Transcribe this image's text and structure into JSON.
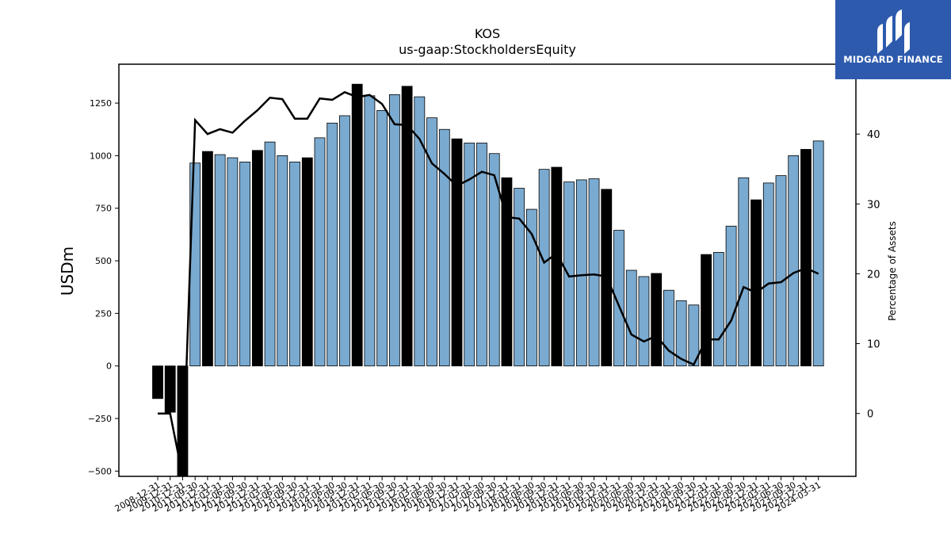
{
  "logo": {
    "name": "MIDGARD FINANCE"
  },
  "colors": {
    "bar_normal": "#7aaad0",
    "bar_highlight": "#000000",
    "line": "#000000"
  },
  "chart_data": {
    "type": "bar",
    "title": "KOS",
    "subtitle": "us-gaap:StockholdersEquity",
    "ylabel": "USDm",
    "y2label": "Percentage of Assets",
    "ylim": [
      -525,
      1435
    ],
    "y2lim": [
      -9,
      50
    ],
    "yticks": [
      -500,
      -250,
      0,
      250,
      500,
      750,
      1000,
      1250
    ],
    "y2ticks": [
      0,
      10,
      20,
      30,
      40
    ],
    "xtick_labels": [
      "2008-12-31",
      "2009-12-31",
      "2010-12-31",
      "2011-09-30",
      "2011-12-31",
      "2012-03-31",
      "2012-06-30",
      "2012-09-30",
      "2012-12-31",
      "2013-03-31",
      "2013-06-30",
      "2013-09-30",
      "2013-12-31",
      "2014-03-31",
      "2014-06-30",
      "2014-09-30",
      "2014-12-31",
      "2015-03-31",
      "2015-06-30",
      "2015-09-30",
      "2015-12-31",
      "2016-03-31",
      "2016-06-30",
      "2016-09-30",
      "2016-12-31",
      "2017-03-31",
      "2017-06-30",
      "2017-09-30",
      "2017-12-31",
      "2018-03-31",
      "2018-06-30",
      "2018-09-30",
      "2018-12-31",
      "2019-03-31",
      "2019-06-30",
      "2019-09-30",
      "2019-12-31",
      "2020-03-31",
      "2020-06-30",
      "2020-09-30",
      "2020-12-31",
      "2021-03-31",
      "2021-06-30",
      "2021-09-30",
      "2021-12-31",
      "2022-03-31",
      "2022-06-30",
      "2022-09-30",
      "2022-12-31",
      "2023-03-31",
      "2023-06-30",
      "2023-09-30",
      "2023-12-31",
      "2024-03-31"
    ],
    "values": [
      -155,
      -220,
      -590,
      965,
      1020,
      1005,
      990,
      970,
      1025,
      1065,
      1000,
      970,
      990,
      1085,
      1155,
      1190,
      1340,
      1285,
      1215,
      1290,
      1330,
      1280,
      1180,
      1125,
      1080,
      1060,
      1060,
      1010,
      895,
      845,
      745,
      935,
      945,
      875,
      885,
      890,
      840,
      645,
      455,
      425,
      440,
      360,
      310,
      290,
      530,
      540,
      665,
      895,
      790,
      870,
      905,
      1000,
      1030,
      1070
    ],
    "highlight": [
      true,
      true,
      true,
      false,
      true,
      false,
      false,
      false,
      true,
      false,
      false,
      false,
      true,
      false,
      false,
      false,
      true,
      false,
      false,
      false,
      true,
      false,
      false,
      false,
      true,
      false,
      false,
      false,
      true,
      false,
      false,
      false,
      true,
      false,
      false,
      false,
      true,
      false,
      false,
      false,
      true,
      false,
      false,
      false,
      true,
      false,
      false,
      false,
      true,
      false,
      false,
      false,
      true,
      false
    ],
    "pct_of_assets": [
      0,
      0,
      -18,
      42,
      40,
      40.7,
      40.2,
      41.9,
      43.4,
      45.2,
      45,
      42.2,
      42.2,
      45.1,
      44.9,
      46,
      45.3,
      45.6,
      44.3,
      41.4,
      41.3,
      39.3,
      35.8,
      34.3,
      32.6,
      33.5,
      34.6,
      34.1,
      28.1,
      27.9,
      25.7,
      21.6,
      22.9,
      19.6,
      19.8,
      19.9,
      19.6,
      15.4,
      11.3,
      10.3,
      11.1,
      9,
      7.8,
      7,
      10.6,
      10.6,
      13.3,
      18.1,
      17.3,
      18.6,
      18.8,
      20.1,
      20.8,
      20
    ]
  }
}
